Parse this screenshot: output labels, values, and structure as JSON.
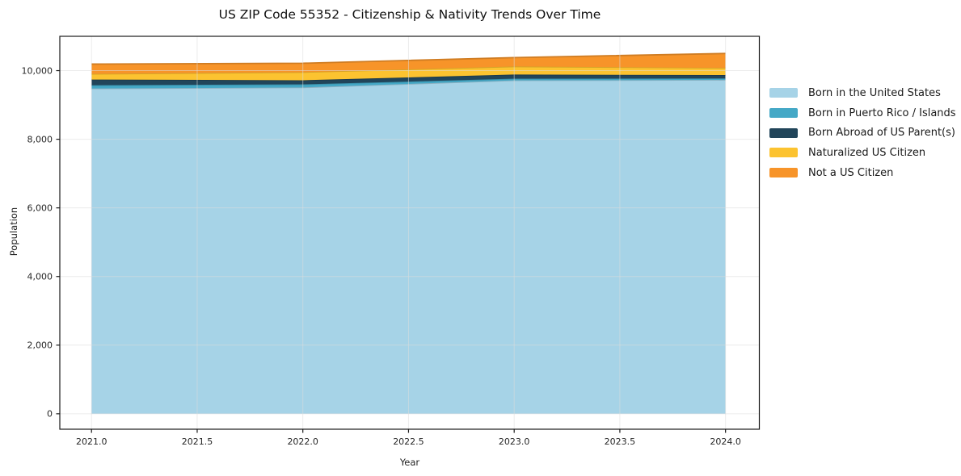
{
  "chart": {
    "title": "US ZIP Code 55352 - Citizenship & Nativity Trends Over Time",
    "xlabel": "Year",
    "ylabel": "Population"
  },
  "chart_data": {
    "type": "area",
    "stacked": true,
    "title": "US ZIP Code 55352 - Citizenship & Nativity Trends Over Time",
    "xlabel": "Year",
    "ylabel": "Population",
    "x": [
      2021,
      2022,
      2023,
      2024
    ],
    "series": [
      {
        "name": "Born in the United States",
        "color": "#a6d3e7",
        "values": [
          9480,
          9510,
          9715,
          9730
        ]
      },
      {
        "name": "Born in Puerto Rico / Islands",
        "color": "#44a8c6",
        "values": [
          95,
          90,
          50,
          45
        ]
      },
      {
        "name": "Born Abroad of US Parent(s)",
        "color": "#21455a",
        "values": [
          165,
          120,
          120,
          95
        ]
      },
      {
        "name": "Naturalized US Citizen",
        "color": "#fcc330",
        "values": [
          165,
          235,
          235,
          210
        ]
      },
      {
        "name": "Not a US Citizen",
        "color": "#f79429",
        "values": [
          285,
          260,
          260,
          420
        ]
      }
    ],
    "stacked_totals": [
      10190,
      10215,
      10380,
      10500
    ],
    "xticks": [
      2021.0,
      2021.5,
      2022.0,
      2022.5,
      2023.0,
      2023.5,
      2024.0
    ],
    "xtick_labels": [
      "2021.0",
      "2021.5",
      "2022.0",
      "2022.5",
      "2023.0",
      "2023.5",
      "2024.0"
    ],
    "yticks": [
      0,
      2000,
      4000,
      6000,
      8000,
      10000
    ],
    "ytick_labels": [
      "0",
      "2,000",
      "4,000",
      "6,000",
      "8,000",
      "10,000"
    ],
    "xlim": [
      2020.85,
      2024.16
    ],
    "ylim": [
      -450,
      11000
    ],
    "grid": true,
    "legend_position": "right-outside",
    "colors": {
      "spine": "#1a1a1a",
      "grid": "#dcdcdc",
      "tick_label": "#262626",
      "background": "#ffffff"
    }
  }
}
